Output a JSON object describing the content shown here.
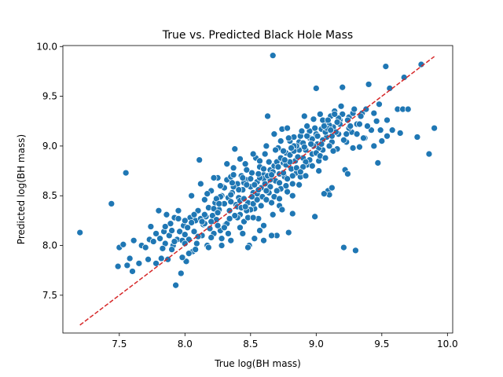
{
  "chart_data": {
    "type": "scatter",
    "title": "True vs. Predicted Black Hole Mass",
    "xlabel": "True log(BH mass)",
    "ylabel": "Predicted log(BH mass)",
    "xlim": [
      7.07,
      10.04
    ],
    "ylim": [
      7.12,
      10.01
    ],
    "xticks": [
      7.5,
      8.0,
      8.5,
      9.0,
      9.5,
      10.0
    ],
    "xtick_labels": [
      "7.5",
      "8.0",
      "8.5",
      "9.0",
      "9.5",
      "10.0"
    ],
    "yticks": [
      7.5,
      8.0,
      8.5,
      9.0,
      9.5,
      10.0
    ],
    "ytick_labels": [
      "7.5",
      "8.0",
      "8.5",
      "9.0",
      "9.5",
      "10.0"
    ],
    "grid": false,
    "point_color": "#1f77b4",
    "reference_line": {
      "x": [
        7.2,
        9.9
      ],
      "y": [
        7.2,
        9.9
      ],
      "color": "#d62728",
      "style": "dashed"
    },
    "points": [
      [
        7.2,
        8.13
      ],
      [
        7.44,
        8.42
      ],
      [
        7.49,
        7.79
      ],
      [
        7.5,
        7.98
      ],
      [
        7.53,
        8.01
      ],
      [
        7.55,
        8.73
      ],
      [
        7.56,
        7.8
      ],
      [
        7.58,
        7.87
      ],
      [
        7.6,
        7.74
      ],
      [
        7.61,
        8.05
      ],
      [
        7.65,
        7.82
      ],
      [
        7.67,
        8.0
      ],
      [
        7.7,
        7.98
      ],
      [
        7.72,
        7.86
      ],
      [
        7.73,
        8.06
      ],
      [
        7.74,
        8.19
      ],
      [
        7.76,
        8.04
      ],
      [
        7.78,
        7.82
      ],
      [
        7.8,
        8.35
      ],
      [
        7.81,
        8.07
      ],
      [
        7.82,
        7.87
      ],
      [
        7.84,
        8.14
      ],
      [
        7.85,
        8.02
      ],
      [
        7.86,
        8.31
      ],
      [
        7.87,
        7.86
      ],
      [
        7.88,
        8.1
      ],
      [
        7.89,
        8.22
      ],
      [
        7.9,
        8.15
      ],
      [
        7.91,
        8.0
      ],
      [
        7.92,
        8.28
      ],
      [
        7.93,
        7.6
      ],
      [
        7.94,
        8.06
      ],
      [
        7.95,
        8.35
      ],
      [
        7.96,
        8.14
      ],
      [
        7.97,
        7.72
      ],
      [
        7.98,
        8.05
      ],
      [
        7.99,
        8.2
      ],
      [
        8.0,
        8.11
      ],
      [
        8.01,
        7.84
      ],
      [
        8.02,
        8.18
      ],
      [
        8.03,
        8.06
      ],
      [
        8.04,
        8.28
      ],
      [
        8.05,
        8.5
      ],
      [
        8.06,
        7.94
      ],
      [
        8.07,
        8.14
      ],
      [
        8.08,
        8.25
      ],
      [
        8.09,
        8.02
      ],
      [
        8.1,
        8.35
      ],
      [
        8.11,
        8.86
      ],
      [
        8.12,
        8.27
      ],
      [
        8.13,
        8.1
      ],
      [
        8.14,
        8.21
      ],
      [
        8.15,
        8.46
      ],
      [
        8.16,
        8.29
      ],
      [
        8.17,
        8.0
      ],
      [
        8.18,
        8.38
      ],
      [
        8.19,
        8.17
      ],
      [
        8.2,
        8.55
      ],
      [
        8.21,
        8.3
      ],
      [
        8.22,
        8.12
      ],
      [
        8.23,
        8.43
      ],
      [
        8.24,
        8.26
      ],
      [
        8.25,
        8.68
      ],
      [
        8.26,
        8.36
      ],
      [
        8.27,
        8.15
      ],
      [
        8.28,
        8.5
      ],
      [
        8.29,
        8.59
      ],
      [
        8.3,
        8.42
      ],
      [
        8.31,
        8.21
      ],
      [
        8.32,
        8.66
      ],
      [
        8.33,
        8.48
      ],
      [
        8.34,
        8.35
      ],
      [
        8.35,
        8.69
      ],
      [
        8.36,
        8.53
      ],
      [
        8.37,
        8.78
      ],
      [
        8.38,
        8.97
      ],
      [
        8.39,
        8.41
      ],
      [
        8.4,
        8.62
      ],
      [
        8.41,
        8.48
      ],
      [
        8.42,
        8.31
      ],
      [
        8.43,
        8.7
      ],
      [
        8.44,
        8.56
      ],
      [
        8.45,
        8.24
      ],
      [
        8.46,
        8.82
      ],
      [
        8.47,
        8.66
      ],
      [
        8.48,
        8.43
      ],
      [
        8.49,
        8.0
      ],
      [
        8.5,
        8.59
      ],
      [
        8.51,
        8.73
      ],
      [
        8.52,
        8.53
      ],
      [
        8.53,
        8.37
      ],
      [
        8.54,
        8.88
      ],
      [
        8.55,
        8.64
      ],
      [
        8.56,
        8.27
      ],
      [
        8.57,
        8.79
      ],
      [
        8.58,
        8.58
      ],
      [
        8.59,
        8.49
      ],
      [
        8.6,
        8.71
      ],
      [
        8.61,
        8.92
      ],
      [
        8.62,
        8.62
      ],
      [
        8.63,
        9.3
      ],
      [
        8.64,
        8.53
      ],
      [
        8.65,
        8.76
      ],
      [
        8.66,
        8.43
      ],
      [
        8.67,
        9.91
      ],
      [
        8.68,
        8.8
      ],
      [
        8.69,
        8.65
      ],
      [
        8.7,
        8.1
      ],
      [
        8.71,
        8.98
      ],
      [
        8.72,
        8.72
      ],
      [
        8.73,
        8.57
      ],
      [
        8.74,
        9.17
      ],
      [
        8.75,
        8.83
      ],
      [
        8.76,
        8.69
      ],
      [
        8.77,
        8.93
      ],
      [
        8.78,
        8.54
      ],
      [
        8.79,
        8.13
      ],
      [
        8.8,
        9.05
      ],
      [
        8.81,
        8.77
      ],
      [
        8.82,
        8.62
      ],
      [
        8.83,
        9.09
      ],
      [
        8.84,
        8.85
      ],
      [
        8.85,
        8.73
      ],
      [
        8.86,
        8.97
      ],
      [
        8.87,
        9.04
      ],
      [
        8.88,
        8.69
      ],
      [
        8.9,
        8.88
      ],
      [
        8.91,
        9.3
      ],
      [
        8.92,
        8.96
      ],
      [
        8.93,
        8.81
      ],
      [
        8.95,
        9.08
      ],
      [
        8.97,
        8.92
      ],
      [
        8.99,
        8.29
      ],
      [
        9.0,
        9.58
      ],
      [
        9.01,
        9.02
      ],
      [
        9.02,
        8.85
      ],
      [
        9.04,
        9.17
      ],
      [
        9.05,
        8.96
      ],
      [
        9.07,
        9.24
      ],
      [
        9.08,
        9.09
      ],
      [
        9.09,
        8.55
      ],
      [
        9.1,
        8.51
      ],
      [
        9.11,
        9.3
      ],
      [
        9.12,
        9.04
      ],
      [
        9.13,
        9.19
      ],
      [
        9.14,
        9.35
      ],
      [
        9.16,
        8.97
      ],
      [
        9.17,
        9.12
      ],
      [
        9.18,
        9.26
      ],
      [
        9.2,
        9.59
      ],
      [
        9.21,
        7.98
      ],
      [
        9.22,
        8.76
      ],
      [
        9.23,
        9.04
      ],
      [
        9.24,
        8.72
      ],
      [
        9.25,
        9.29
      ],
      [
        9.27,
        9.14
      ],
      [
        9.28,
        8.98
      ],
      [
        9.3,
        7.95
      ],
      [
        9.31,
        9.22
      ],
      [
        9.33,
        8.99
      ],
      [
        9.35,
        9.33
      ],
      [
        9.37,
        9.08
      ],
      [
        9.38,
        9.37
      ],
      [
        9.4,
        9.62
      ],
      [
        9.42,
        9.16
      ],
      [
        9.44,
        9.33
      ],
      [
        9.46,
        9.25
      ],
      [
        9.47,
        8.83
      ],
      [
        9.48,
        9.42
      ],
      [
        9.5,
        9.05
      ],
      [
        9.53,
        9.8
      ],
      [
        9.54,
        9.26
      ],
      [
        9.56,
        9.58
      ],
      [
        9.58,
        9.16
      ],
      [
        9.62,
        9.37
      ],
      [
        9.64,
        9.13
      ],
      [
        9.66,
        9.37
      ],
      [
        9.67,
        9.69
      ],
      [
        9.7,
        9.37
      ],
      [
        9.77,
        9.09
      ],
      [
        9.8,
        9.82
      ],
      [
        9.86,
        8.92
      ],
      [
        9.9,
        9.18
      ],
      [
        8.3,
        8.58
      ],
      [
        8.35,
        8.44
      ],
      [
        8.4,
        8.28
      ],
      [
        8.45,
        8.63
      ],
      [
        8.5,
        8.36
      ],
      [
        8.55,
        8.52
      ],
      [
        8.6,
        8.67
      ],
      [
        8.65,
        8.59
      ],
      [
        8.7,
        8.84
      ],
      [
        8.75,
        8.73
      ],
      [
        8.8,
        8.91
      ],
      [
        8.85,
        8.78
      ],
      [
        8.9,
        9.03
      ],
      [
        8.95,
        8.86
      ],
      [
        9.0,
        9.12
      ],
      [
        9.05,
        9.06
      ],
      [
        9.1,
        9.21
      ],
      [
        9.15,
        9.14
      ],
      [
        9.2,
        9.32
      ],
      [
        9.25,
        9.18
      ],
      [
        8.22,
        8.37
      ],
      [
        8.27,
        8.49
      ],
      [
        8.32,
        8.22
      ],
      [
        8.37,
        8.59
      ],
      [
        8.42,
        8.45
      ],
      [
        8.47,
        8.61
      ],
      [
        8.52,
        8.42
      ],
      [
        8.57,
        8.68
      ],
      [
        8.62,
        8.55
      ],
      [
        8.67,
        8.74
      ],
      [
        8.72,
        8.63
      ],
      [
        8.77,
        8.81
      ],
      [
        8.82,
        8.7
      ],
      [
        8.87,
        8.96
      ],
      [
        8.92,
        8.84
      ],
      [
        8.97,
        9.07
      ],
      [
        9.02,
        8.98
      ],
      [
        9.07,
        9.14
      ],
      [
        9.12,
        9.1
      ],
      [
        9.17,
        9.28
      ],
      [
        8.15,
        8.22
      ],
      [
        8.2,
        8.08
      ],
      [
        8.25,
        8.33
      ],
      [
        8.3,
        8.18
      ],
      [
        8.35,
        8.51
      ],
      [
        8.4,
        8.39
      ],
      [
        8.45,
        8.47
      ],
      [
        8.5,
        8.67
      ],
      [
        8.55,
        8.46
      ],
      [
        8.6,
        8.77
      ],
      [
        8.65,
        8.66
      ],
      [
        8.7,
        8.55
      ],
      [
        8.75,
        8.95
      ],
      [
        8.8,
        8.84
      ],
      [
        8.85,
        9.0
      ],
      [
        8.9,
        8.79
      ],
      [
        8.95,
        9.15
      ],
      [
        9.0,
        8.93
      ],
      [
        9.05,
        9.26
      ],
      [
        9.1,
        9.0
      ],
      [
        7.95,
        8.27
      ],
      [
        8.0,
        8.02
      ],
      [
        8.05,
        8.23
      ],
      [
        8.1,
        8.09
      ],
      [
        8.15,
        8.31
      ],
      [
        8.2,
        8.24
      ],
      [
        8.25,
        8.2
      ],
      [
        8.28,
        8.07
      ],
      [
        8.33,
        8.12
      ],
      [
        8.38,
        8.3
      ],
      [
        8.43,
        8.38
      ],
      [
        8.48,
        8.28
      ],
      [
        8.53,
        8.61
      ],
      [
        8.58,
        8.4
      ],
      [
        8.63,
        8.7
      ],
      [
        8.68,
        8.49
      ],
      [
        8.73,
        8.88
      ],
      [
        8.78,
        8.67
      ],
      [
        8.83,
        8.95
      ],
      [
        8.88,
        8.74
      ],
      [
        8.93,
        9.1
      ],
      [
        8.98,
        9.0
      ],
      [
        9.03,
        8.9
      ],
      [
        9.08,
        9.18
      ],
      [
        9.13,
        8.95
      ],
      [
        9.18,
        9.22
      ],
      [
        9.23,
        9.12
      ],
      [
        9.28,
        9.33
      ],
      [
        9.33,
        9.22
      ],
      [
        9.36,
        9.08
      ],
      [
        8.42,
        8.18
      ],
      [
        8.47,
        8.35
      ],
      [
        8.52,
        8.28
      ],
      [
        8.57,
        8.15
      ],
      [
        8.62,
        8.46
      ],
      [
        8.67,
        8.31
      ],
      [
        8.72,
        8.4
      ],
      [
        8.77,
        8.6
      ],
      [
        8.82,
        8.5
      ],
      [
        8.87,
        8.61
      ],
      [
        8.92,
        8.7
      ],
      [
        8.97,
        8.8
      ],
      [
        9.02,
        8.75
      ],
      [
        9.07,
        8.88
      ],
      [
        8.12,
        8.62
      ],
      [
        8.17,
        8.52
      ],
      [
        8.22,
        8.68
      ],
      [
        8.27,
        8.6
      ],
      [
        8.32,
        8.82
      ],
      [
        8.37,
        8.71
      ],
      [
        8.42,
        8.87
      ],
      [
        8.47,
        8.76
      ],
      [
        8.52,
        8.92
      ],
      [
        8.57,
        8.85
      ],
      [
        8.62,
        9.0
      ],
      [
        8.68,
        9.12
      ],
      [
        8.73,
        9.05
      ],
      [
        8.78,
        9.18
      ],
      [
        8.83,
        9.0
      ],
      [
        8.88,
        9.1
      ],
      [
        8.93,
        9.2
      ],
      [
        8.98,
        9.27
      ],
      [
        9.03,
        9.32
      ],
      [
        9.09,
        9.26
      ],
      [
        9.14,
        9.32
      ],
      [
        9.19,
        9.4
      ],
      [
        9.24,
        9.26
      ],
      [
        9.29,
        9.37
      ],
      [
        9.34,
        9.3
      ],
      [
        9.39,
        9.2
      ],
      [
        9.44,
        9.0
      ],
      [
        9.49,
        9.16
      ],
      [
        9.54,
        9.1
      ],
      [
        8.35,
        8.05
      ],
      [
        8.44,
        8.12
      ],
      [
        8.53,
        8.07
      ],
      [
        8.6,
        8.2
      ],
      [
        8.66,
        8.1
      ],
      [
        8.48,
        7.98
      ],
      [
        8.28,
        8.0
      ],
      [
        8.18,
        7.98
      ],
      [
        8.08,
        7.96
      ],
      [
        8.03,
        7.92
      ],
      [
        7.98,
        7.88
      ],
      [
        7.9,
        7.96
      ],
      [
        7.83,
        7.97
      ],
      [
        7.78,
        8.12
      ],
      [
        7.85,
        8.19
      ],
      [
        7.92,
        8.04
      ],
      [
        8.0,
        8.25
      ],
      [
        8.07,
        8.31
      ],
      [
        8.13,
        8.24
      ],
      [
        8.24,
        8.47
      ],
      [
        8.34,
        8.27
      ],
      [
        8.41,
        8.56
      ],
      [
        8.46,
        8.39
      ],
      [
        8.51,
        8.49
      ],
      [
        8.56,
        8.56
      ],
      [
        8.61,
        8.62
      ],
      [
        8.66,
        8.71
      ],
      [
        8.71,
        8.79
      ],
      [
        8.76,
        8.86
      ],
      [
        8.81,
        8.98
      ],
      [
        8.86,
        8.89
      ],
      [
        8.91,
        8.99
      ],
      [
        8.96,
        9.02
      ],
      [
        9.01,
        9.1
      ],
      [
        9.06,
        9.2
      ],
      [
        9.11,
        9.16
      ],
      [
        9.16,
        9.24
      ],
      [
        9.21,
        9.06
      ],
      [
        9.26,
        9.2
      ],
      [
        9.31,
        9.12
      ],
      [
        9.06,
        8.52
      ],
      [
        9.12,
        8.58
      ],
      [
        8.6,
        8.05
      ],
      [
        8.72,
        8.47
      ],
      [
        8.74,
        8.36
      ],
      [
        8.82,
        8.32
      ],
      [
        8.26,
        8.42
      ],
      [
        8.36,
        8.63
      ],
      [
        8.44,
        8.68
      ],
      [
        8.56,
        8.72
      ],
      [
        8.64,
        8.84
      ],
      [
        8.69,
        8.96
      ],
      [
        8.79,
        9.08
      ],
      [
        8.89,
        9.15
      ],
      [
        8.99,
        9.18
      ],
      [
        9.04,
        9.02
      ]
    ]
  }
}
